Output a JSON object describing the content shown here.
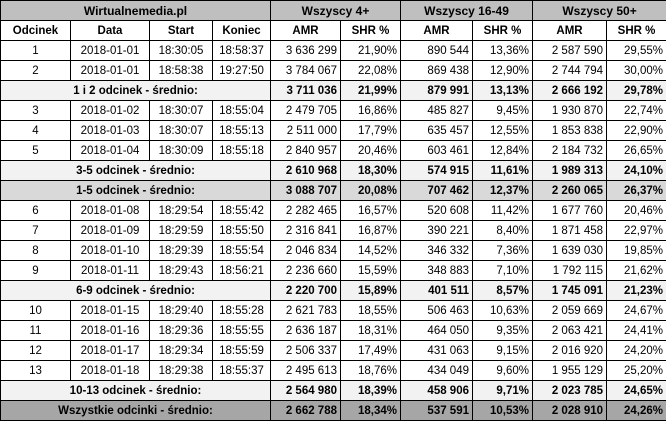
{
  "header": {
    "source": "Wirtualnemedia.pl",
    "groups": [
      "Wszyscy 4+",
      "Wszyscy 16-49",
      "Wszyscy 50+"
    ]
  },
  "columns": [
    "Odcinek",
    "Data",
    "Start",
    "Koniec",
    "AMR",
    "SHR %",
    "AMR",
    "SHR %",
    "AMR",
    "SHR %"
  ],
  "rows": [
    {
      "type": "episode",
      "cells": [
        "1",
        "2018-01-01",
        "18:30:05",
        "18:58:37",
        "3 636 299",
        "21,90%",
        "890 544",
        "13,36%",
        "2 587 590",
        "29,55%"
      ]
    },
    {
      "type": "episode",
      "cells": [
        "2",
        "2018-01-01",
        "18:58:38",
        "19:27:50",
        "3 784 067",
        "22,08%",
        "869 438",
        "12,90%",
        "2 744 794",
        "30,00%"
      ]
    },
    {
      "type": "avg-light",
      "label": "1 i 2 odcinek - średnio:",
      "cells": [
        "3 711 036",
        "21,99%",
        "879 991",
        "13,13%",
        "2 666 192",
        "29,78%"
      ]
    },
    {
      "type": "episode",
      "cells": [
        "3",
        "2018-01-02",
        "18:30:07",
        "18:55:04",
        "2 479 705",
        "16,86%",
        "485 827",
        "9,45%",
        "1 930 870",
        "22,74%"
      ]
    },
    {
      "type": "episode",
      "cells": [
        "4",
        "2018-01-03",
        "18:30:07",
        "18:55:13",
        "2 511 000",
        "17,79%",
        "635 457",
        "12,55%",
        "1 853 838",
        "22,90%"
      ]
    },
    {
      "type": "episode",
      "cells": [
        "5",
        "2018-01-04",
        "18:30:09",
        "18:55:18",
        "2 840 957",
        "20,46%",
        "603 461",
        "12,84%",
        "2 184 732",
        "26,65%"
      ]
    },
    {
      "type": "avg-light",
      "label": "3-5 odcinek - średnio:",
      "cells": [
        "2 610 968",
        "18,30%",
        "574 915",
        "11,61%",
        "1 989 313",
        "24,10%"
      ]
    },
    {
      "type": "avg-dark",
      "label": "1-5 odcinek - średnio:",
      "cells": [
        "3 088 707",
        "20,08%",
        "707 462",
        "12,37%",
        "2 260 065",
        "26,37%"
      ]
    },
    {
      "type": "episode",
      "cells": [
        "6",
        "2018-01-08",
        "18:29:54",
        "18:55:42",
        "2 282 465",
        "16,57%",
        "520 608",
        "11,42%",
        "1 677 760",
        "20,46%"
      ]
    },
    {
      "type": "episode",
      "cells": [
        "7",
        "2018-01-09",
        "18:29:59",
        "18:55:50",
        "2 316 841",
        "16,87%",
        "390 221",
        "8,40%",
        "1 871 458",
        "22,97%"
      ]
    },
    {
      "type": "episode",
      "cells": [
        "8",
        "2018-01-10",
        "18:29:39",
        "18:55:54",
        "2 046 834",
        "14,52%",
        "346 332",
        "7,36%",
        "1 639 030",
        "19,85%"
      ]
    },
    {
      "type": "episode",
      "cells": [
        "9",
        "2018-01-11",
        "18:29:43",
        "18:56:21",
        "2 236 660",
        "15,59%",
        "348 883",
        "7,10%",
        "1 792 115",
        "21,62%"
      ]
    },
    {
      "type": "avg-light",
      "label": "6-9 odcinek - średnio:",
      "cells": [
        "2 220 700",
        "15,89%",
        "401 511",
        "8,57%",
        "1 745 091",
        "21,23%"
      ]
    },
    {
      "type": "episode",
      "cells": [
        "10",
        "2018-01-15",
        "18:29:40",
        "18:55:28",
        "2 621 783",
        "18,55%",
        "506 463",
        "10,63%",
        "2 059 669",
        "24,67%"
      ]
    },
    {
      "type": "episode",
      "cells": [
        "11",
        "2018-01-16",
        "18:29:36",
        "18:55:55",
        "2 636 187",
        "18,31%",
        "464 050",
        "9,35%",
        "2 063 421",
        "24,41%"
      ]
    },
    {
      "type": "episode",
      "cells": [
        "12",
        "2018-01-17",
        "18:29:34",
        "18:55:59",
        "2 506 337",
        "17,49%",
        "431 063",
        "9,15%",
        "2 016 920",
        "24,20%"
      ]
    },
    {
      "type": "episode",
      "cells": [
        "13",
        "2018-01-18",
        "18:29:38",
        "18:55:37",
        "2 495 613",
        "18,76%",
        "434 049",
        "9,60%",
        "1 955 129",
        "25,20%"
      ]
    },
    {
      "type": "avg-light",
      "label": "10-13 odcinek - średnio:",
      "cells": [
        "2 564 980",
        "18,39%",
        "458 906",
        "9,71%",
        "2 023 785",
        "24,65%"
      ]
    },
    {
      "type": "avg-total",
      "label": "Wszystkie odcinki - średnio:",
      "cells": [
        "2 662 788",
        "18,34%",
        "537 591",
        "10,53%",
        "2 028 910",
        "24,26%"
      ]
    }
  ]
}
